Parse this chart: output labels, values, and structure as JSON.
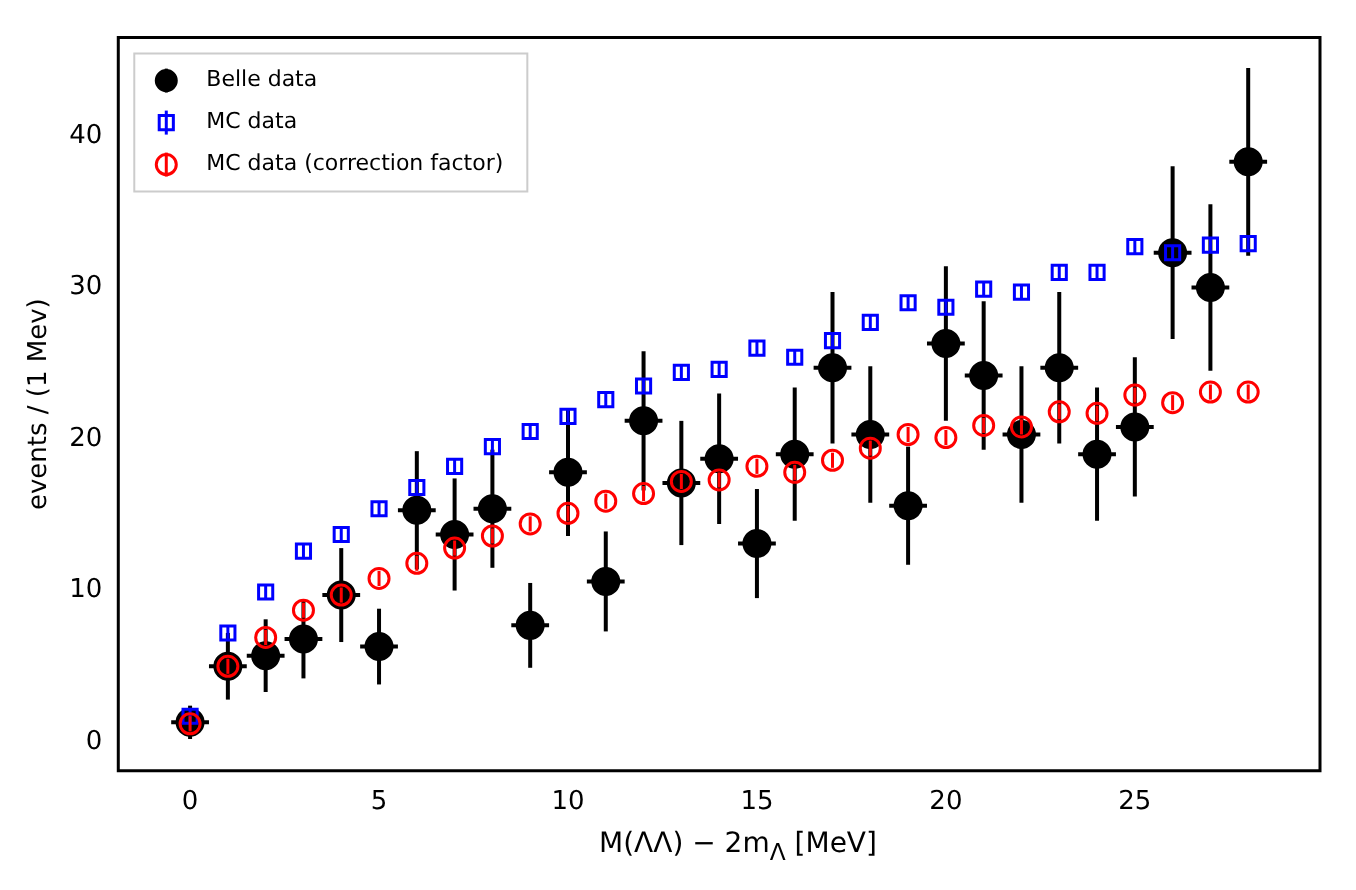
{
  "chart_data": {
    "type": "scatter",
    "xlabel": "M(ΛΛ) − 2m$_{Λ}$ [MeV]",
    "ylabel": "events / (1 Mev)",
    "x": [
      0,
      1,
      2,
      3,
      4,
      5,
      6,
      7,
      8,
      9,
      10,
      11,
      12,
      13,
      14,
      15,
      16,
      17,
      18,
      19,
      20,
      21,
      22,
      23,
      24,
      25,
      26,
      27,
      28
    ],
    "xlim": [
      -1.9,
      29.9
    ],
    "xticks": [
      0,
      5,
      10,
      15,
      20,
      25
    ],
    "ylim": [
      -1.9,
      46.5
    ],
    "yticks": [
      0,
      10,
      20,
      30,
      40
    ],
    "grid": false,
    "legend": "top left",
    "series": [
      {
        "name": "Belle data",
        "color": "#000000",
        "marker": "circle",
        "values": [
          1.3,
          5.0,
          5.7,
          6.8,
          9.7,
          6.3,
          15.3,
          13.7,
          15.4,
          7.7,
          17.8,
          10.6,
          21.2,
          17.1,
          18.7,
          13.1,
          19.0,
          24.7,
          20.3,
          15.6,
          26.3,
          24.2,
          20.3,
          24.7,
          19.0,
          20.8,
          32.3,
          30.0,
          38.3
        ],
        "errors": [
          1.1,
          2.2,
          2.4,
          2.6,
          3.1,
          2.5,
          3.9,
          3.7,
          3.9,
          2.8,
          4.2,
          3.3,
          4.6,
          4.1,
          4.3,
          3.6,
          4.4,
          5.0,
          4.5,
          3.9,
          5.1,
          4.9,
          4.5,
          5.0,
          4.4,
          4.6,
          5.7,
          5.5,
          6.2
        ],
        "xerrors": [
          0.5,
          0.5,
          0.5,
          0.5,
          0.5,
          0.5,
          0.5,
          0.5,
          0.5,
          0.5,
          0.5,
          0.5,
          0.5,
          0.5,
          0.5,
          0.5,
          0.5,
          0.5,
          0.5,
          0.5,
          0.5,
          0.5,
          0.5,
          0.5,
          0.5,
          0.5,
          0.5,
          0.5,
          0.5
        ]
      },
      {
        "name": "MC data",
        "color": "#0000ff",
        "marker": "square",
        "values": [
          1.7,
          7.2,
          9.9,
          12.6,
          13.7,
          15.4,
          16.8,
          18.2,
          19.5,
          20.5,
          21.5,
          22.6,
          23.5,
          24.4,
          24.6,
          26.0,
          25.4,
          26.5,
          27.7,
          29.0,
          28.7,
          29.9,
          29.7,
          31.0,
          31.0,
          32.7,
          32.3,
          32.8,
          32.9
        ],
        "errors": [
          0.5,
          0.5,
          0.5,
          0.5,
          0.5,
          0.5,
          0.5,
          0.5,
          0.5,
          0.5,
          0.5,
          0.5,
          0.5,
          0.5,
          0.5,
          0.5,
          0.5,
          0.5,
          0.5,
          0.5,
          0.5,
          0.5,
          0.5,
          0.5,
          0.5,
          0.5,
          0.5,
          0.5,
          0.5
        ]
      },
      {
        "name": "MC data (correction factor)",
        "color": "#ff0000",
        "marker": "circle",
        "values": [
          1.2,
          5.0,
          6.9,
          8.7,
          9.7,
          10.8,
          11.8,
          12.8,
          13.6,
          14.4,
          15.1,
          15.9,
          16.4,
          17.2,
          17.3,
          18.2,
          17.8,
          18.6,
          19.4,
          20.3,
          20.1,
          20.9,
          20.8,
          21.8,
          21.7,
          22.9,
          22.4,
          23.1,
          23.1
        ],
        "errors": [
          0.5,
          0.5,
          0.5,
          0.5,
          0.5,
          0.5,
          0.5,
          0.5,
          0.5,
          0.5,
          0.5,
          0.5,
          0.5,
          0.5,
          0.5,
          0.5,
          0.5,
          0.5,
          0.5,
          0.5,
          0.5,
          0.5,
          0.5,
          0.5,
          0.5,
          0.5,
          0.5,
          0.5,
          0.5
        ]
      }
    ]
  }
}
